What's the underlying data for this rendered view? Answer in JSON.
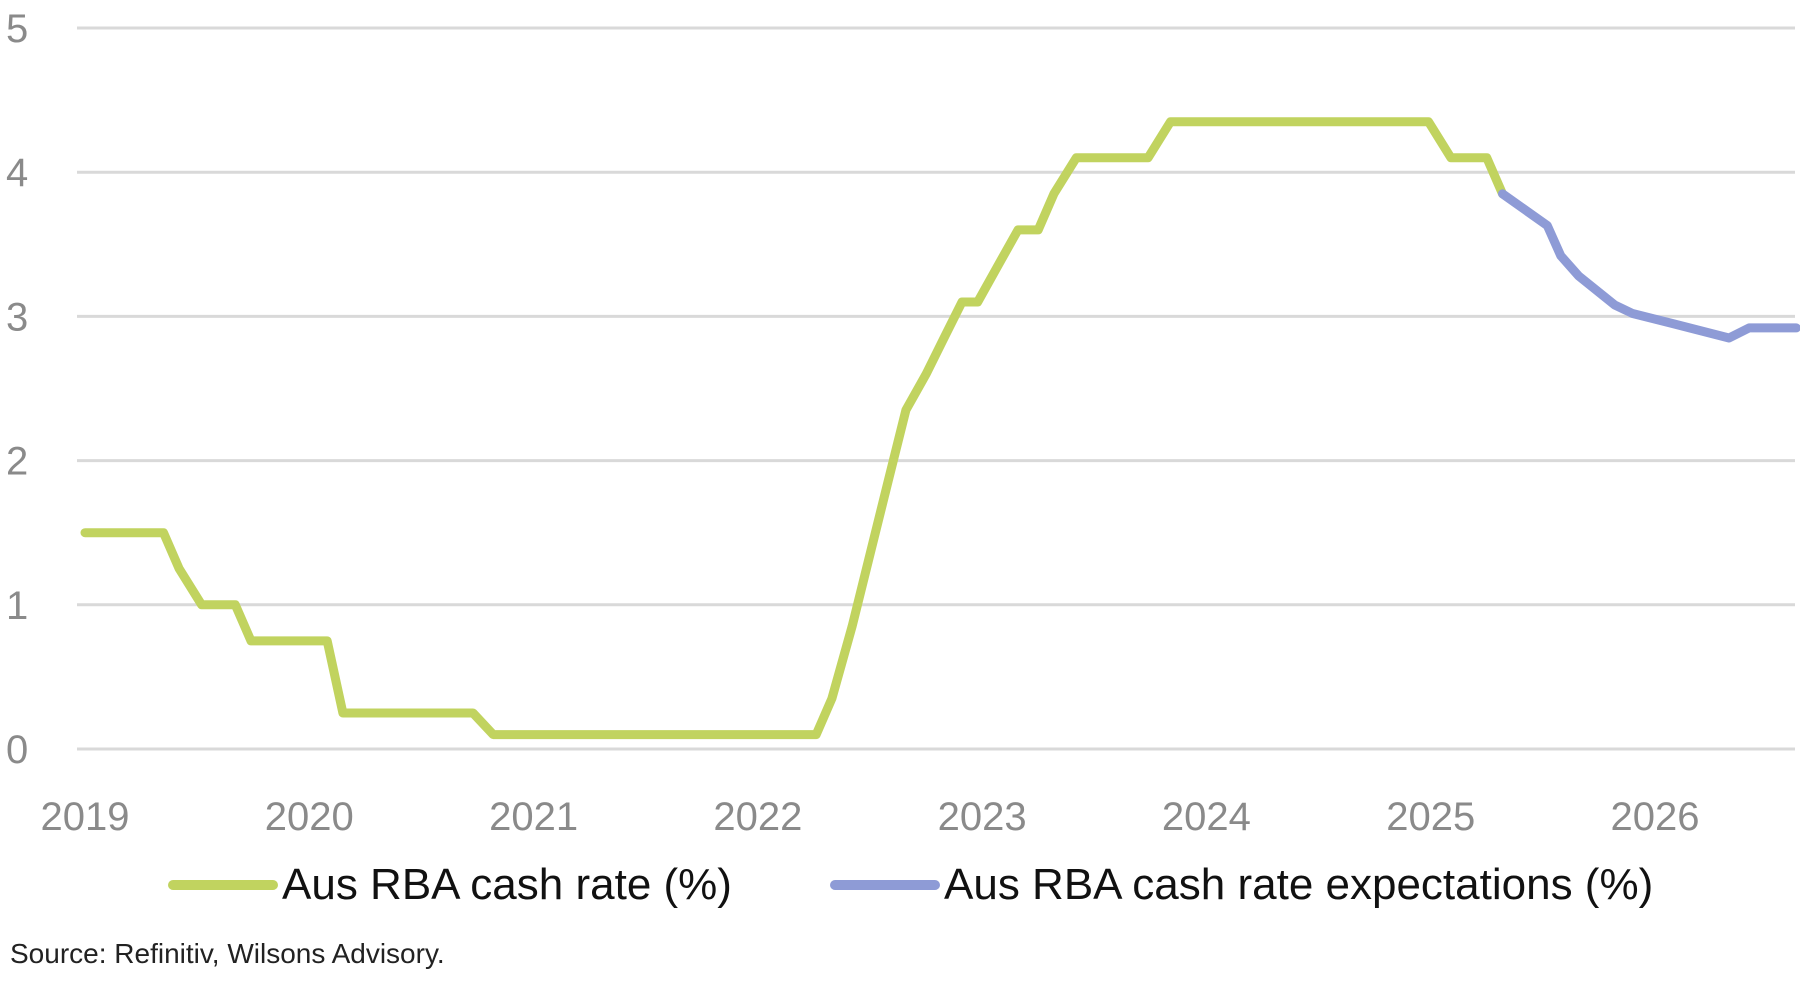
{
  "chart_data": {
    "type": "line",
    "yticks": [
      "0",
      "1",
      "2",
      "3",
      "4",
      "5"
    ],
    "ylim": [
      0,
      5
    ],
    "xticks": [
      "2019",
      "2020",
      "2021",
      "2022",
      "2023",
      "2024",
      "2025",
      "2026"
    ],
    "xlim": [
      2019.0,
      2026.65
    ],
    "grid": true,
    "legend_position": "bottom",
    "series": [
      {
        "name": "Aus RBA cash rate (%)",
        "color": "#c1d35f",
        "x": [
          2019.0,
          2019.35,
          2019.42,
          2019.52,
          2019.67,
          2019.74,
          2020.08,
          2020.15,
          2020.73,
          2020.82,
          2022.26,
          2022.33,
          2022.42,
          2022.5,
          2022.58,
          2022.66,
          2022.75,
          2022.83,
          2022.91,
          2022.98,
          2023.07,
          2023.16,
          2023.25,
          2023.32,
          2023.42,
          2023.74,
          2023.84,
          2024.99,
          2025.09,
          2025.25,
          2025.32
        ],
        "y": [
          1.5,
          1.5,
          1.25,
          1.0,
          1.0,
          0.75,
          0.75,
          0.25,
          0.25,
          0.1,
          0.1,
          0.35,
          0.85,
          1.35,
          1.85,
          2.35,
          2.6,
          2.85,
          3.1,
          3.1,
          3.35,
          3.6,
          3.6,
          3.85,
          4.1,
          4.1,
          4.35,
          4.35,
          4.1,
          4.1,
          3.85
        ]
      },
      {
        "name": "Aus RBA cash rate expectations (%)",
        "color": "#8e9bd6",
        "x": [
          2025.32,
          2025.52,
          2025.58,
          2025.66,
          2025.82,
          2025.9,
          2026.08,
          2026.33,
          2026.42,
          2026.63
        ],
        "y": [
          3.85,
          3.63,
          3.42,
          3.28,
          3.08,
          3.02,
          2.95,
          2.85,
          2.92,
          2.92
        ]
      }
    ]
  },
  "source": "Source: Refinitiv, Wilsons Advisory."
}
